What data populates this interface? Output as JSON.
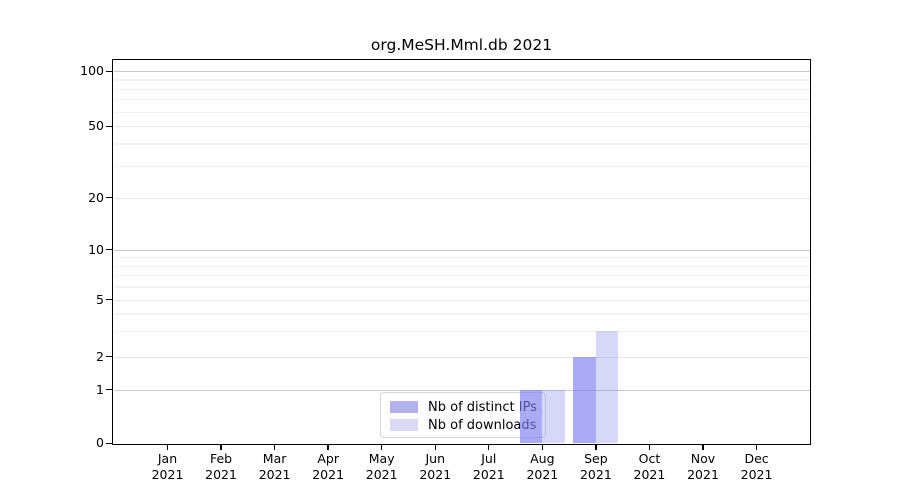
{
  "title": "org.MeSH.Mml.db 2021",
  "year_label": "2021",
  "months": [
    "Jan",
    "Feb",
    "Mar",
    "Apr",
    "May",
    "Jun",
    "Jul",
    "Aug",
    "Sep",
    "Oct",
    "Nov",
    "Dec"
  ],
  "legend": {
    "items": [
      {
        "label": "Nb of distinct IPs",
        "swatch_color": "#b1b1ef"
      },
      {
        "label": "Nb of downloads",
        "swatch_color": "#dadaf6"
      }
    ]
  },
  "colors": {
    "distinct_ips_bar": "rgba(124,124,240,0.65)",
    "downloads_bar": "rgba(150,150,235,0.38)",
    "grid_major_strong": "#c6c6c6",
    "grid_major": "#e6e6e6",
    "grid_minor": "#f2f2f2",
    "axis": "#000000"
  },
  "chart_data": {
    "type": "bar",
    "title": "org.MeSH.Mml.db 2021",
    "categories": [
      "Jan 2021",
      "Feb 2021",
      "Mar 2021",
      "Apr 2021",
      "May 2021",
      "Jun 2021",
      "Jul 2021",
      "Aug 2021",
      "Sep 2021",
      "Oct 2021",
      "Nov 2021",
      "Dec 2021"
    ],
    "series": [
      {
        "name": "Nb of distinct IPs",
        "values": [
          0,
          0,
          0,
          0,
          0,
          0,
          0,
          1,
          2,
          0,
          0,
          0
        ]
      },
      {
        "name": "Nb of downloads",
        "values": [
          0,
          0,
          0,
          0,
          0,
          0,
          0,
          1,
          3,
          0,
          0,
          0
        ]
      }
    ],
    "y_axis": {
      "ticks": [
        0,
        1,
        2,
        5,
        10,
        20,
        50,
        100
      ],
      "minor_gridlines": [
        3,
        4,
        6,
        7,
        8,
        9,
        30,
        40,
        60,
        70,
        80,
        90
      ],
      "scale": "log (0 pinned to baseline)",
      "range": [
        0,
        100
      ]
    },
    "xlabel": "",
    "ylabel": "",
    "grid": "horizontal major+minor",
    "legend_position": "lower center inside plot"
  }
}
